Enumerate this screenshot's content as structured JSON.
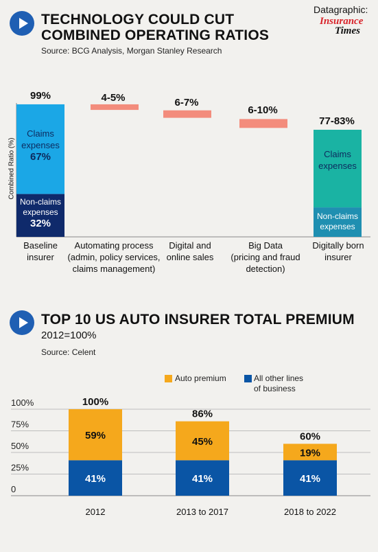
{
  "brand": {
    "prefix": "Datagraphic:",
    "logo_line1": "Insurance",
    "logo_line2": "Times"
  },
  "colors": {
    "accent": "#1f5fb3",
    "light_blue": "#1ba7e6",
    "navy": "#0f2a6b",
    "salmon": "#f38c7c",
    "teal": "#1ab3a3",
    "teal_dark": "#1f8fb1",
    "gold": "#f5a81c",
    "blue": "#0a55a5"
  },
  "section1": {
    "title_line1": "TECHNOLOGY COULD CUT",
    "title_line2": "COMBINED OPERATING RATIOS",
    "source": "Source: BCG Analysis, Morgan Stanley Research",
    "ylabel": "Combined Ratio (%)",
    "chart_data": {
      "type": "bar",
      "categories": [
        [
          "Baseline",
          "insurer"
        ],
        [
          "Automating process",
          "(admin, policy services,",
          "claims management)"
        ],
        [
          "Digital and",
          "online sales"
        ],
        [
          "Big Data",
          "(pricing and fraud",
          "detection)"
        ],
        [
          "Digitally born",
          "insurer"
        ]
      ],
      "top_labels": [
        "99%",
        "4-5%",
        "6-7%",
        "6-10%",
        "77-83%"
      ],
      "baseline": {
        "total": 99,
        "claims": 67,
        "non_claims": 32,
        "claims_label": [
          "Claims",
          "expenses"
        ],
        "claims_value": "67%",
        "non_claims_label": [
          "Non-claims",
          "expenses"
        ],
        "non_claims_value": "32%"
      },
      "reductions": [
        {
          "range": [
            4,
            5
          ]
        },
        {
          "range": [
            6,
            7
          ]
        },
        {
          "range": [
            6,
            10
          ]
        }
      ],
      "digital": {
        "range": [
          77,
          83
        ],
        "claims_label": [
          "Claims",
          "expenses"
        ],
        "non_claims_label": [
          "Non-claims",
          "expenses"
        ]
      }
    }
  },
  "section2": {
    "title": "TOP 10 US AUTO INSURER TOTAL PREMIUM",
    "subtitle": "2012=100%",
    "source": "Source: Celent",
    "chart_data": {
      "type": "bar",
      "stacked": true,
      "categories": [
        "2012",
        "2013 to 2017",
        "2018 to 2022"
      ],
      "series": [
        {
          "name": "All other lines of business",
          "legend_lines": [
            "All other lines",
            "of business"
          ],
          "values": [
            41,
            41,
            41
          ],
          "labels": [
            "41%",
            "41%",
            "41%"
          ]
        },
        {
          "name": "Auto premium",
          "legend_lines": [
            "Auto premium"
          ],
          "values": [
            59,
            45,
            19
          ],
          "labels": [
            "59%",
            "45%",
            "19%"
          ]
        }
      ],
      "totals": [
        "100%",
        "86%",
        "60%"
      ],
      "yticks": [
        "100%",
        "75%",
        "50%",
        "25%",
        "0"
      ],
      "ylim": [
        0,
        100
      ],
      "legend_position": "top-right"
    }
  }
}
